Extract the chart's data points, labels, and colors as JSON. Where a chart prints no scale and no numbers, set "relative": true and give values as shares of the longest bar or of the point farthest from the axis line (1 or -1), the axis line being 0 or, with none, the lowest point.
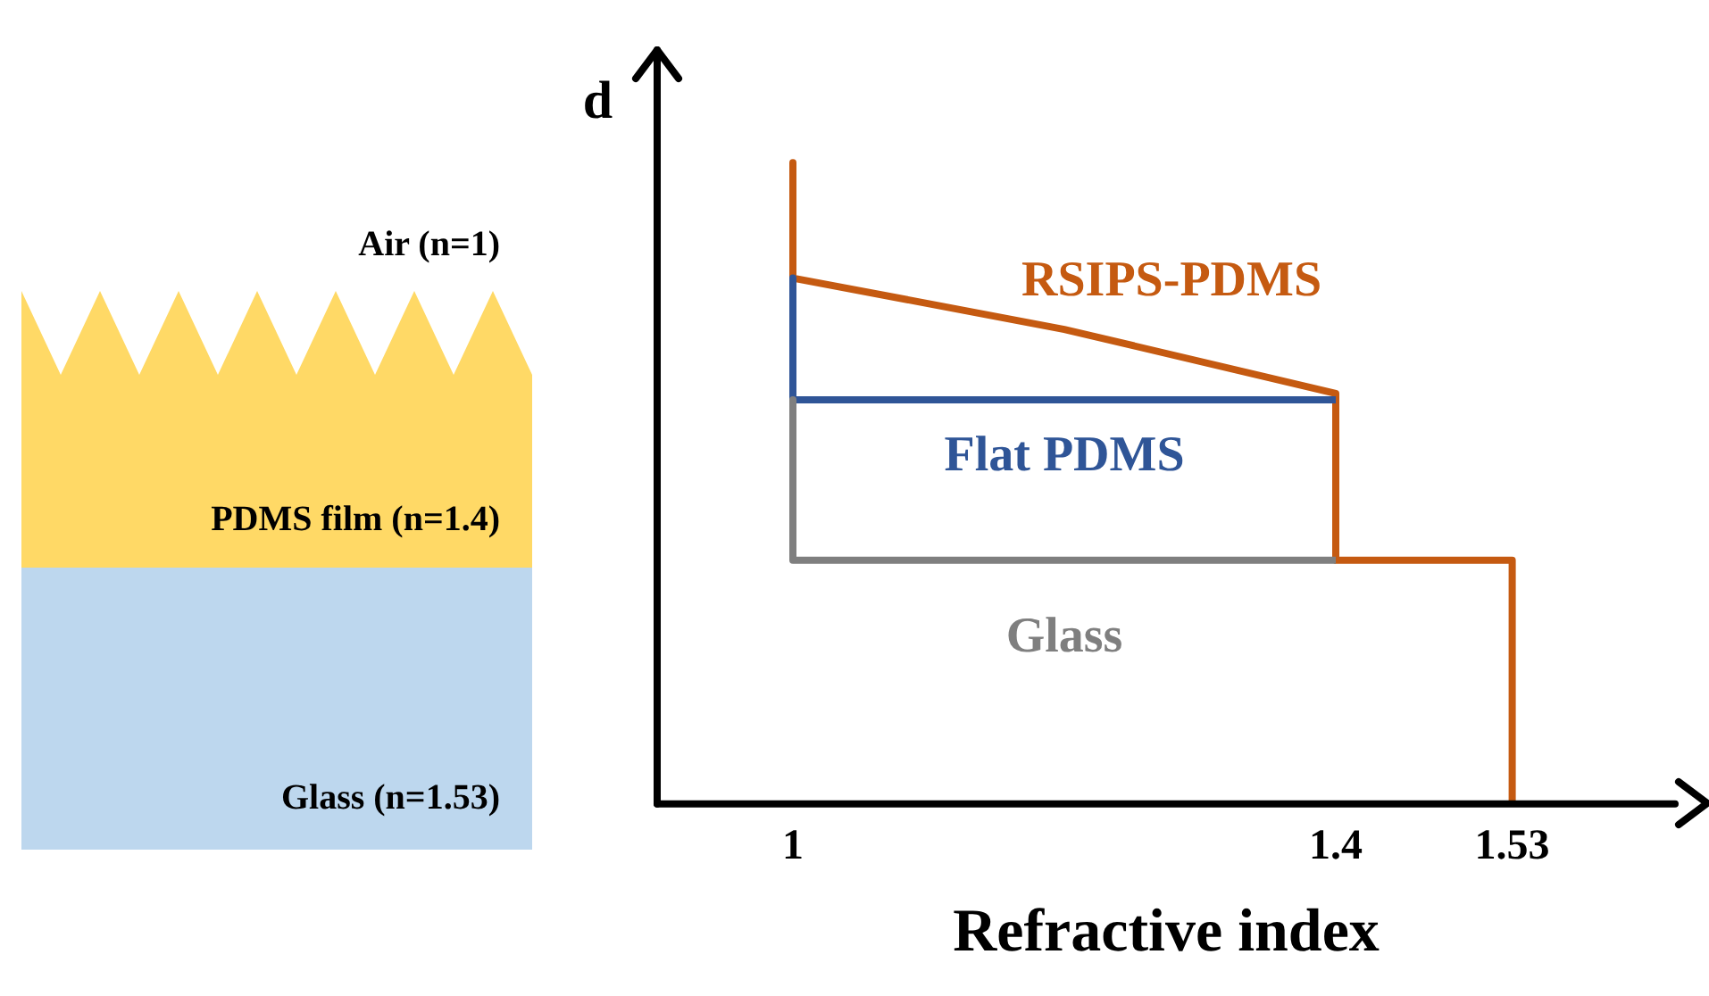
{
  "chart_data": {
    "type": "line",
    "relative": true,
    "xlabel": "Refractive index",
    "ylabel": "d",
    "xlim": [
      0.9,
      1.65
    ],
    "xticks": [
      1,
      1.4,
      1.53
    ],
    "marker": "none",
    "annotations": [
      "Air (n=1)",
      "PDMS film (n=1.4)",
      "Glass (n=1.53)"
    ],
    "series": [
      {
        "name": "RSIPS-PDMS",
        "color": "#c55a11",
        "x": [
          1,
          1,
          1.2,
          1.4,
          1.4,
          1.53,
          1.53
        ],
        "values": [
          1,
          0.82,
          0.74,
          0.64,
          0.38,
          0.38,
          0
        ]
      },
      {
        "name": "Flat PDMS",
        "color": "#2f5597",
        "x": [
          1,
          1,
          1.4
        ],
        "values": [
          0.82,
          0.63,
          0.63
        ]
      },
      {
        "name": "Glass",
        "color": "#7f7f7f",
        "x": [
          1,
          1,
          1.4
        ],
        "values": [
          0.63,
          0.38,
          0.38
        ]
      }
    ]
  }
}
